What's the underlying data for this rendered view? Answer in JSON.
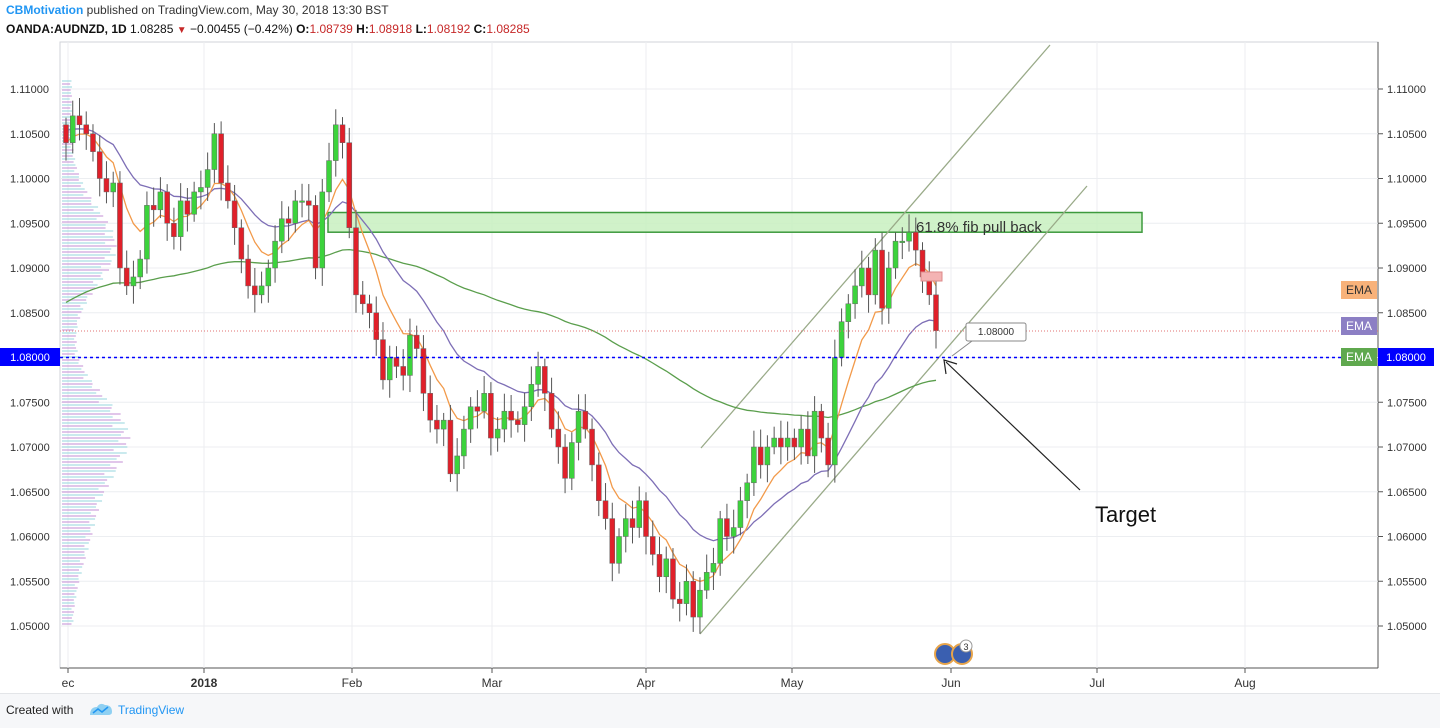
{
  "header": {
    "author": "CBMotivation",
    "published": "published on TradingView.com, May 30, 2018 13:30 BST",
    "symbol": "OANDA:AUDNZD, 1D",
    "last": "1.08285",
    "change": "−0.00455 (−0.42%)",
    "o_label": "O:",
    "o_value": "1.08739",
    "h_label": "H:",
    "h_value": "1.08918",
    "l_label": "L:",
    "l_value": "1.08192",
    "c_label": "C:",
    "c_value": "1.08285"
  },
  "footer": {
    "created": "Created with",
    "brand": "TradingView"
  },
  "colors": {
    "up": "#3cd33c",
    "down": "#e0202a",
    "ema_orange": "#f29a4a",
    "ema_purple": "#7e6fb6",
    "ema_green": "#5a9e4c",
    "current_line": "#0000ff",
    "zone_fill": "#c8f0c0",
    "zone_stroke": "#3d9a3d",
    "channel": "#99aa88"
  },
  "chart_data": {
    "type": "candlestick",
    "symbol": "OANDA:AUDNZD",
    "timeframe": "1D",
    "y_ticks": [
      "1.05000",
      "1.05500",
      "1.06000",
      "1.06500",
      "1.07000",
      "1.07500",
      "1.08000",
      "1.08500",
      "1.09000",
      "1.09500",
      "1.10000",
      "1.10500",
      "1.11000"
    ],
    "x_labels": [
      "ec",
      "2018",
      "Feb",
      "Mar",
      "Apr",
      "May",
      "Jun",
      "Jul",
      "Aug"
    ],
    "ylim": [
      1.0455,
      1.114
    ],
    "price_line": "1.08000",
    "callout_value": "1.08000",
    "ema_labels": [
      "EMA",
      "EMA",
      "EMA"
    ],
    "zone": {
      "label": "61.8% fib pull back",
      "low": 1.094,
      "high": 1.0962
    },
    "annotation": "Target",
    "events_badge": "3",
    "candles_summary": {
      "start_close": 1.104,
      "high": 1.1072,
      "low": 1.049,
      "last_close": 1.08285
    },
    "closes": [
      1.104,
      1.107,
      1.106,
      1.105,
      1.103,
      1.1,
      1.0985,
      1.0995,
      1.09,
      1.088,
      1.089,
      1.091,
      1.097,
      1.0965,
      1.0985,
      1.095,
      1.0935,
      1.0975,
      1.096,
      1.0985,
      1.099,
      1.101,
      1.105,
      1.0995,
      1.0975,
      1.0945,
      1.091,
      1.088,
      1.087,
      1.088,
      1.09,
      1.093,
      1.0955,
      1.095,
      1.0975,
      1.0975,
      1.097,
      1.09,
      1.0985,
      1.102,
      1.106,
      1.104,
      1.0945,
      1.087,
      1.086,
      1.085,
      1.082,
      1.0775,
      1.08,
      1.079,
      1.078,
      1.0825,
      1.081,
      1.076,
      1.073,
      1.072,
      1.073,
      1.067,
      1.069,
      1.072,
      1.0745,
      1.074,
      1.076,
      1.071,
      1.072,
      1.074,
      1.073,
      1.0725,
      1.0745,
      1.077,
      1.079,
      1.076,
      1.072,
      1.07,
      1.0665,
      1.0705,
      1.074,
      1.072,
      1.068,
      1.064,
      1.062,
      1.057,
      1.06,
      1.062,
      1.061,
      1.064,
      1.06,
      1.058,
      1.0555,
      1.0575,
      1.053,
      1.0525,
      1.055,
      1.051,
      1.054,
      1.056,
      1.057,
      1.062,
      1.06,
      1.061,
      1.064,
      1.066,
      1.07,
      1.068,
      1.07,
      1.071,
      1.07,
      1.071,
      1.07,
      1.072,
      1.069,
      1.074,
      1.071,
      1.068,
      1.08,
      1.084,
      1.086,
      1.088,
      1.09,
      1.087,
      1.092,
      1.0855,
      1.09,
      1.093,
      1.093,
      1.094,
      1.092,
      1.089,
      1.087,
      1.083
    ]
  }
}
